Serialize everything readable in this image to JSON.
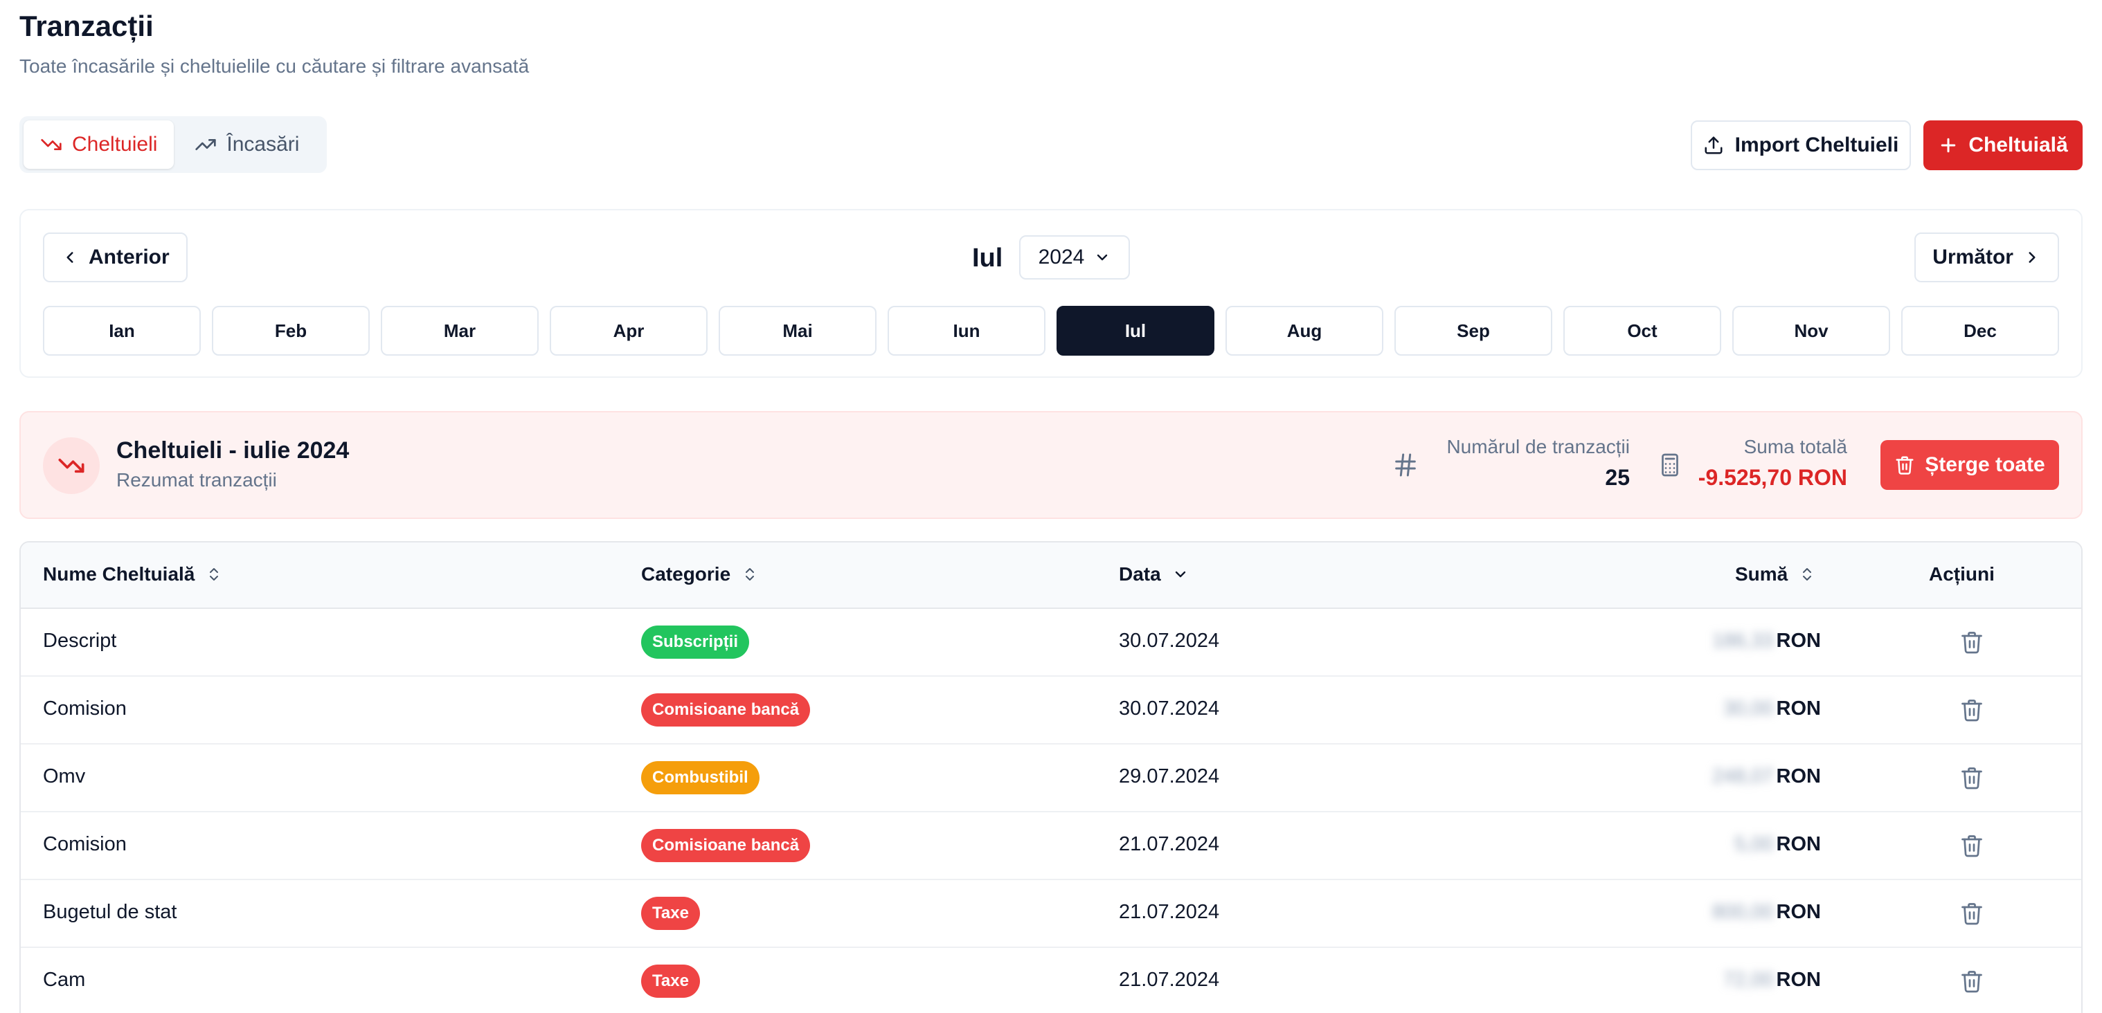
{
  "header": {
    "title": "Tranzacții",
    "subtitle": "Toate încasările și cheltuielile cu căutare și filtrare avansată"
  },
  "tabs": [
    {
      "label": "Cheltuieli",
      "icon": "trending-down-icon",
      "active": true
    },
    {
      "label": "Încasări",
      "icon": "trending-up-icon",
      "active": false
    }
  ],
  "actions": {
    "import_label": "Import Cheltuieli",
    "add_label": "Cheltuială"
  },
  "month_nav": {
    "prev_label": "Anterior",
    "next_label": "Următor",
    "current_month": "Iul",
    "year": "2024",
    "months": [
      "Ian",
      "Feb",
      "Mar",
      "Apr",
      "Mai",
      "Iun",
      "Iul",
      "Aug",
      "Sep",
      "Oct",
      "Nov",
      "Dec"
    ],
    "active_index": 6
  },
  "summary": {
    "title": "Cheltuieli - iulie 2024",
    "subtitle": "Rezumat tranzacții",
    "count_label": "Numărul de tranzacții",
    "count_value": "25",
    "total_label": "Suma totală",
    "total_value": "-9.525,70 RON",
    "delete_all_label": "Șterge toate"
  },
  "table": {
    "columns": {
      "name": "Nume Cheltuială",
      "category": "Categorie",
      "date": "Data",
      "amount": "Sumă",
      "actions": "Acțiuni"
    },
    "currency": "RON",
    "rows": [
      {
        "name": "Descript",
        "category": "Subscripții",
        "category_color": "#22c55e",
        "date": "30.07.2024",
        "amount_blurred": "186,33"
      },
      {
        "name": "Comision",
        "category": "Comisioane bancă",
        "category_color": "#ef4444",
        "date": "30.07.2024",
        "amount_blurred": "30,00"
      },
      {
        "name": "Omv",
        "category": "Combustibil",
        "category_color": "#f59e0b",
        "date": "29.07.2024",
        "amount_blurred": "248,07"
      },
      {
        "name": "Comision",
        "category": "Comisioane bancă",
        "category_color": "#ef4444",
        "date": "21.07.2024",
        "amount_blurred": "5,00"
      },
      {
        "name": "Bugetul de stat",
        "category": "Taxe",
        "category_color": "#ef4444",
        "date": "21.07.2024",
        "amount_blurred": "800,00"
      },
      {
        "name": "Cam",
        "category": "Taxe",
        "category_color": "#ef4444",
        "date": "21.07.2024",
        "amount_blurred": "72,00"
      }
    ]
  },
  "colors": {
    "accent_red": "#dc2626",
    "dark": "#0f172a",
    "muted": "#64748b"
  }
}
